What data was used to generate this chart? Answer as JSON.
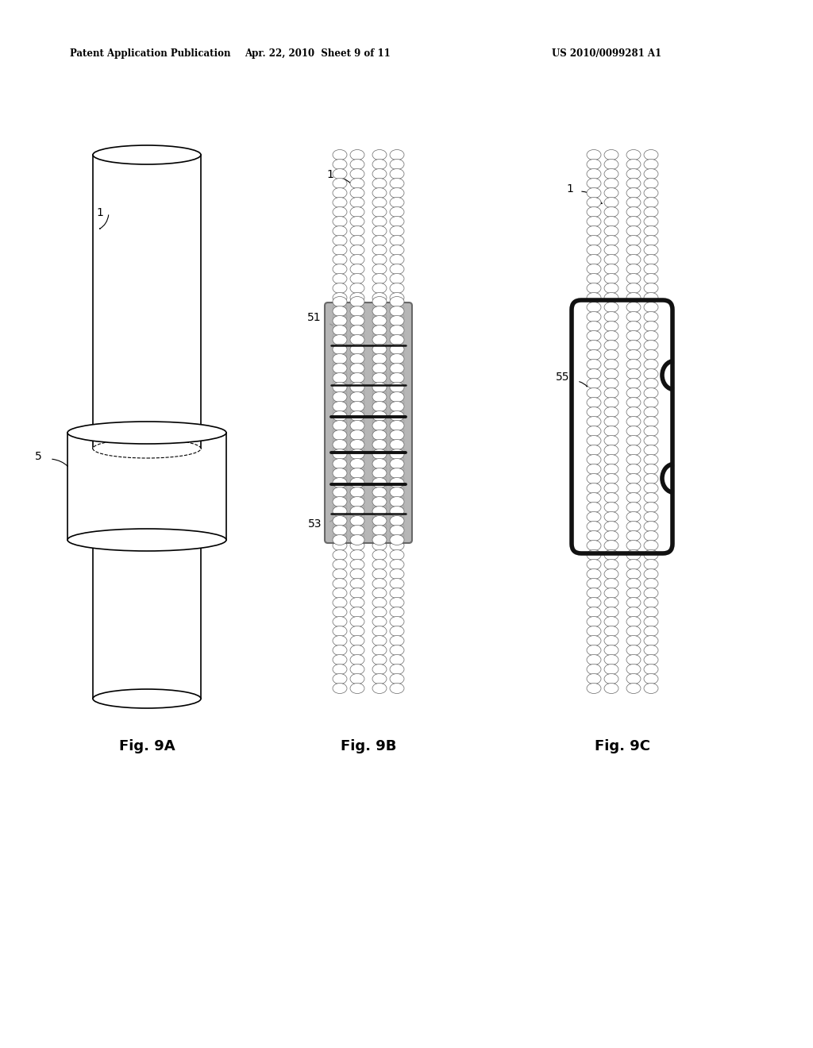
{
  "background_color": "#ffffff",
  "header_left": "Patent Application Publication",
  "header_mid": "Apr. 22, 2010  Sheet 9 of 11",
  "header_right": "US 2010/0099281 A1",
  "fig_labels": [
    "Fig. 9A",
    "Fig. 9B",
    "Fig. 9C"
  ],
  "label_1": "1",
  "label_5": "5",
  "label_51": "51",
  "label_53": "53",
  "label_55": "55",
  "line_color": "#000000",
  "block_fill": "#999999",
  "block_edge": "#444444"
}
